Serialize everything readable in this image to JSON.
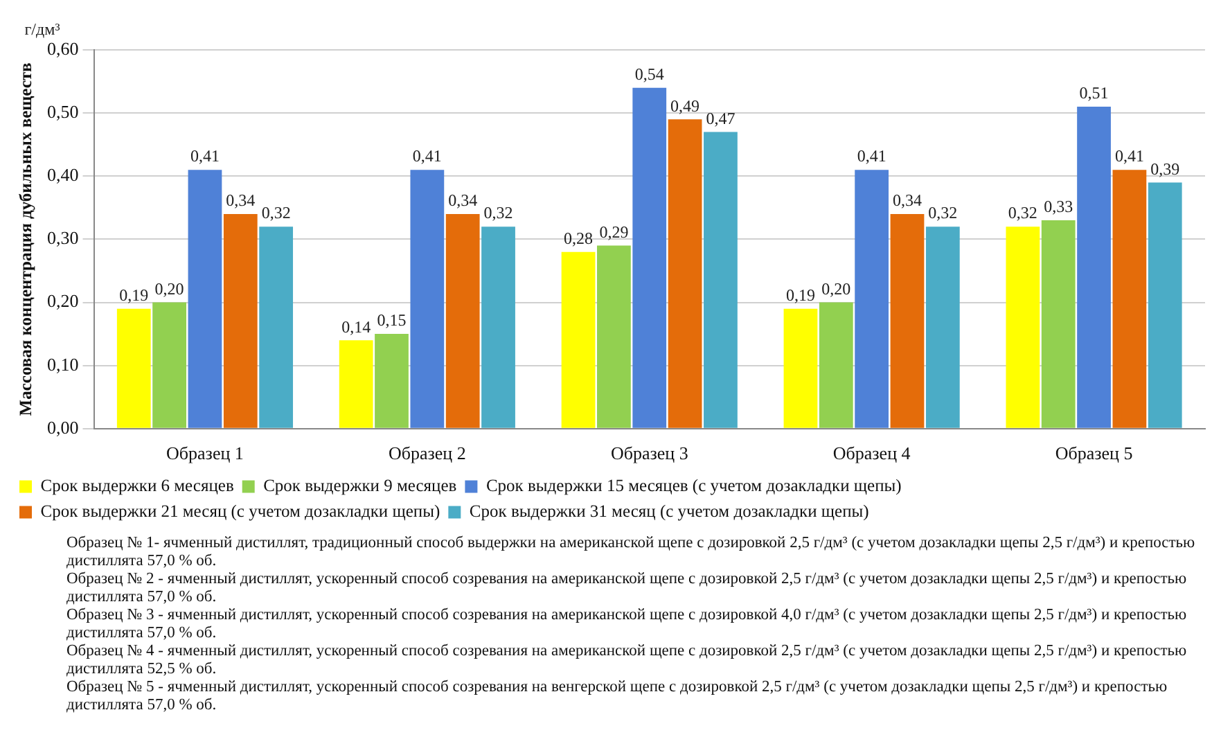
{
  "chart_data": {
    "type": "bar",
    "ylabel": "Массовая концентрация дубильных веществ",
    "categories": [
      "Образец 1",
      "Образец 2",
      "Образец 3",
      "Образец 4",
      "Образец 5"
    ],
    "series": [
      {
        "name": "Срок выдержки 6 месяцев",
        "color": "#ffff00",
        "values": [
          0.19,
          0.14,
          0.28,
          0.19,
          0.32
        ],
        "value_labels": [
          "0,19",
          "0,14",
          "0,28",
          "0,19",
          "0,32"
        ]
      },
      {
        "name": "Срок выдержки 9 месяцев",
        "color": "#92d050",
        "values": [
          0.2,
          0.15,
          0.29,
          0.2,
          0.33
        ],
        "value_labels": [
          "0,20",
          "0,15",
          "0,29",
          "0,20",
          "0,33"
        ]
      },
      {
        "name": "Срок выдержки 15 месяцев (с учетом дозакладки щепы)",
        "color": "#4f81d7",
        "values": [
          0.41,
          0.41,
          0.54,
          0.41,
          0.51
        ],
        "value_labels": [
          "0,41",
          "0,41",
          "0,54",
          "0,41",
          "0,51"
        ]
      },
      {
        "name": "Срок выдержки 21 месяц (с учетом дозакладки щепы)",
        "color": "#e46c0a",
        "values": [
          0.34,
          0.34,
          0.49,
          0.34,
          0.41
        ],
        "value_labels": [
          "0,34",
          "0,34",
          "0,49",
          "0,34",
          "0,41"
        ]
      },
      {
        "name": "Срок выдержки 31 месяц (с учетом дозакладки щепы)",
        "color": "#4bacc6",
        "values": [
          0.32,
          0.32,
          0.47,
          0.32,
          0.39
        ],
        "value_labels": [
          "0,32",
          "0,32",
          "0,47",
          "0,32",
          "0,39"
        ]
      }
    ],
    "ylim": [
      0,
      0.6
    ],
    "yticks": [
      {
        "value": 0,
        "label": "0,00"
      },
      {
        "value": 0.1,
        "label": "0,10"
      },
      {
        "value": 0.2,
        "label": "0,20"
      },
      {
        "value": 0.3,
        "label": "0,30"
      },
      {
        "value": 0.4,
        "label": "0,40"
      },
      {
        "value": 0.5,
        "label": "0,50"
      },
      {
        "value": 0.6,
        "label": "0,60"
      }
    ],
    "grid": "y",
    "legend": "bottom",
    "annotations": [
      "г/дм³",
      "Образец № 1- ячменный дистиллят, традиционный способ выдержки на американской щепе с дозировкой 2,5 г/дм³ (с учетом дозакладки щепы 2,5 г/дм³) и крепостью дистиллята 57,0 % об.",
      "Образец № 2 - ячменный дистиллят, ускоренный способ созревания на американской щепе с дозировкой 2,5 г/дм³ (с учетом дозакладки щепы 2,5 г/дм³) и крепостью дистиллята 57,0 % об.",
      "Образец № 3 - ячменный дистиллят, ускоренный способ созревания на американской щепе с дозировкой 4,0 г/дм³ (с учетом дозакладки щепы 2,5 г/дм³) и крепостью дистиллята 57,0 % об.",
      "Образец № 4 - ячменный дистиллят, ускоренный способ созревания на американской щепе с дозировкой 2,5 г/дм³ (с учетом дозакладки щепы 2,5 г/дм³) и крепостью дистиллята 52,5 % об.",
      "Образец № 5 - ячменный дистиллят, ускоренный способ созревания на венгерской щепе с дозировкой 2,5 г/дм³ (с учетом дозакладки щепы 2,5 г/дм³) и крепостью дистиллята 57,0 % об."
    ]
  }
}
